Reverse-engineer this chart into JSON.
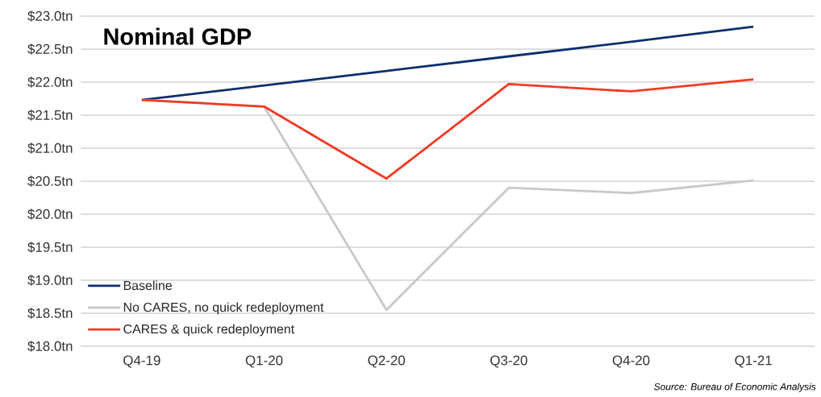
{
  "chart_data": {
    "type": "line",
    "title": "Nominal GDP",
    "categories": [
      "Q4-19",
      "Q1-20",
      "Q2-20",
      "Q3-20",
      "Q4-20",
      "Q1-21"
    ],
    "series": [
      {
        "name": "Baseline",
        "color": "#0b2f6b",
        "values": [
          21.73,
          21.95,
          22.17,
          22.39,
          22.61,
          22.84
        ]
      },
      {
        "name": "No CARES, no quick redeployment",
        "color": "#c8c8c8",
        "values": [
          21.73,
          21.63,
          18.55,
          20.4,
          20.32,
          20.51
        ]
      },
      {
        "name": "CARES & quick redeployment",
        "color": "#f23a25",
        "values": [
          21.73,
          21.63,
          20.54,
          21.97,
          21.86,
          22.04
        ]
      }
    ],
    "ylim": [
      18.0,
      23.0
    ],
    "yticks": [
      {
        "value": 18.0,
        "label": "$18.0tn"
      },
      {
        "value": 18.5,
        "label": "$18.5tn"
      },
      {
        "value": 19.0,
        "label": "$19.0tn"
      },
      {
        "value": 19.5,
        "label": "$19.5tn"
      },
      {
        "value": 20.0,
        "label": "$20.0tn"
      },
      {
        "value": 20.5,
        "label": "$20.5tn"
      },
      {
        "value": 21.0,
        "label": "$21.0tn"
      },
      {
        "value": 21.5,
        "label": "$21.5tn"
      },
      {
        "value": 22.0,
        "label": "$22.0tn"
      },
      {
        "value": 22.5,
        "label": "$22.5tn"
      },
      {
        "value": 23.0,
        "label": "$23.0tn"
      }
    ],
    "grid": "y",
    "legend": "bottom left",
    "marker": "none",
    "line_style": "solid",
    "annotations": [
      "Source: Bureau of Economic Analysis"
    ]
  }
}
